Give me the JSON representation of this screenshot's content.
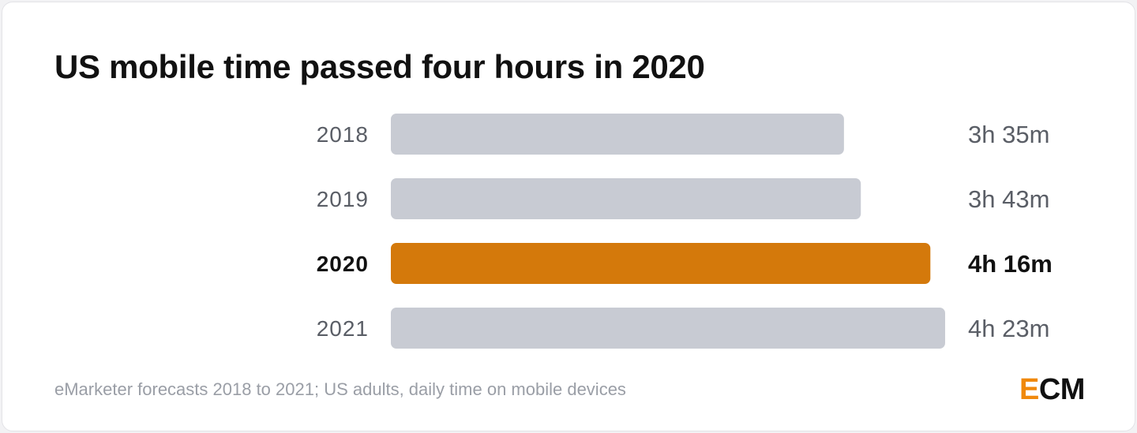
{
  "chart_data": {
    "type": "bar",
    "orientation": "horizontal",
    "title": "US mobile time passed four hours in 2020",
    "categories": [
      "2018",
      "2019",
      "2020",
      "2021"
    ],
    "values_minutes": [
      215,
      223,
      256,
      263
    ],
    "value_labels": [
      "3h 35m",
      "3h 43m",
      "4h 16m",
      "4h 23m"
    ],
    "highlight": "2020",
    "xlim": [
      0,
      263
    ],
    "grid": false,
    "legend": "none",
    "footnote": "eMarketer forecasts 2018 to 2021; US adults, daily time on mobile devices"
  },
  "colors": {
    "bar": "#c8cbd3",
    "highlight": "#d4790b",
    "logo_accent": "#f0890c"
  },
  "logo": {
    "first": "E",
    "rest": "CM"
  }
}
